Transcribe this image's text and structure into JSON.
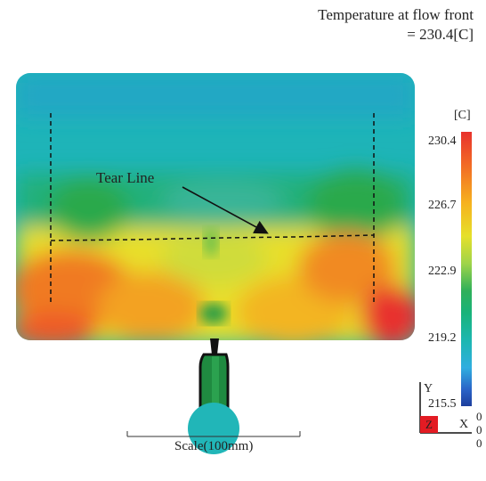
{
  "title": {
    "line1": "Temperature at flow front",
    "line2": "= 230.4[C]"
  },
  "annotation": {
    "tear_line_label": "Tear Line"
  },
  "colorbar": {
    "unit": "[C]",
    "ticks": [
      "230.4",
      "226.7",
      "222.9",
      "219.2",
      "215.5"
    ]
  },
  "axes": {
    "y_label": "Y",
    "z_label": "Z",
    "x_label": "X",
    "origin": [
      "0",
      "0",
      "0"
    ]
  },
  "scale": {
    "label": "Scale(100mm)"
  },
  "colors": {
    "hot": "#e8322d",
    "warm": "#f2d52a",
    "mid": "#2fb05a",
    "cool": "#30aee0",
    "cold": "#1d3e9d"
  }
}
